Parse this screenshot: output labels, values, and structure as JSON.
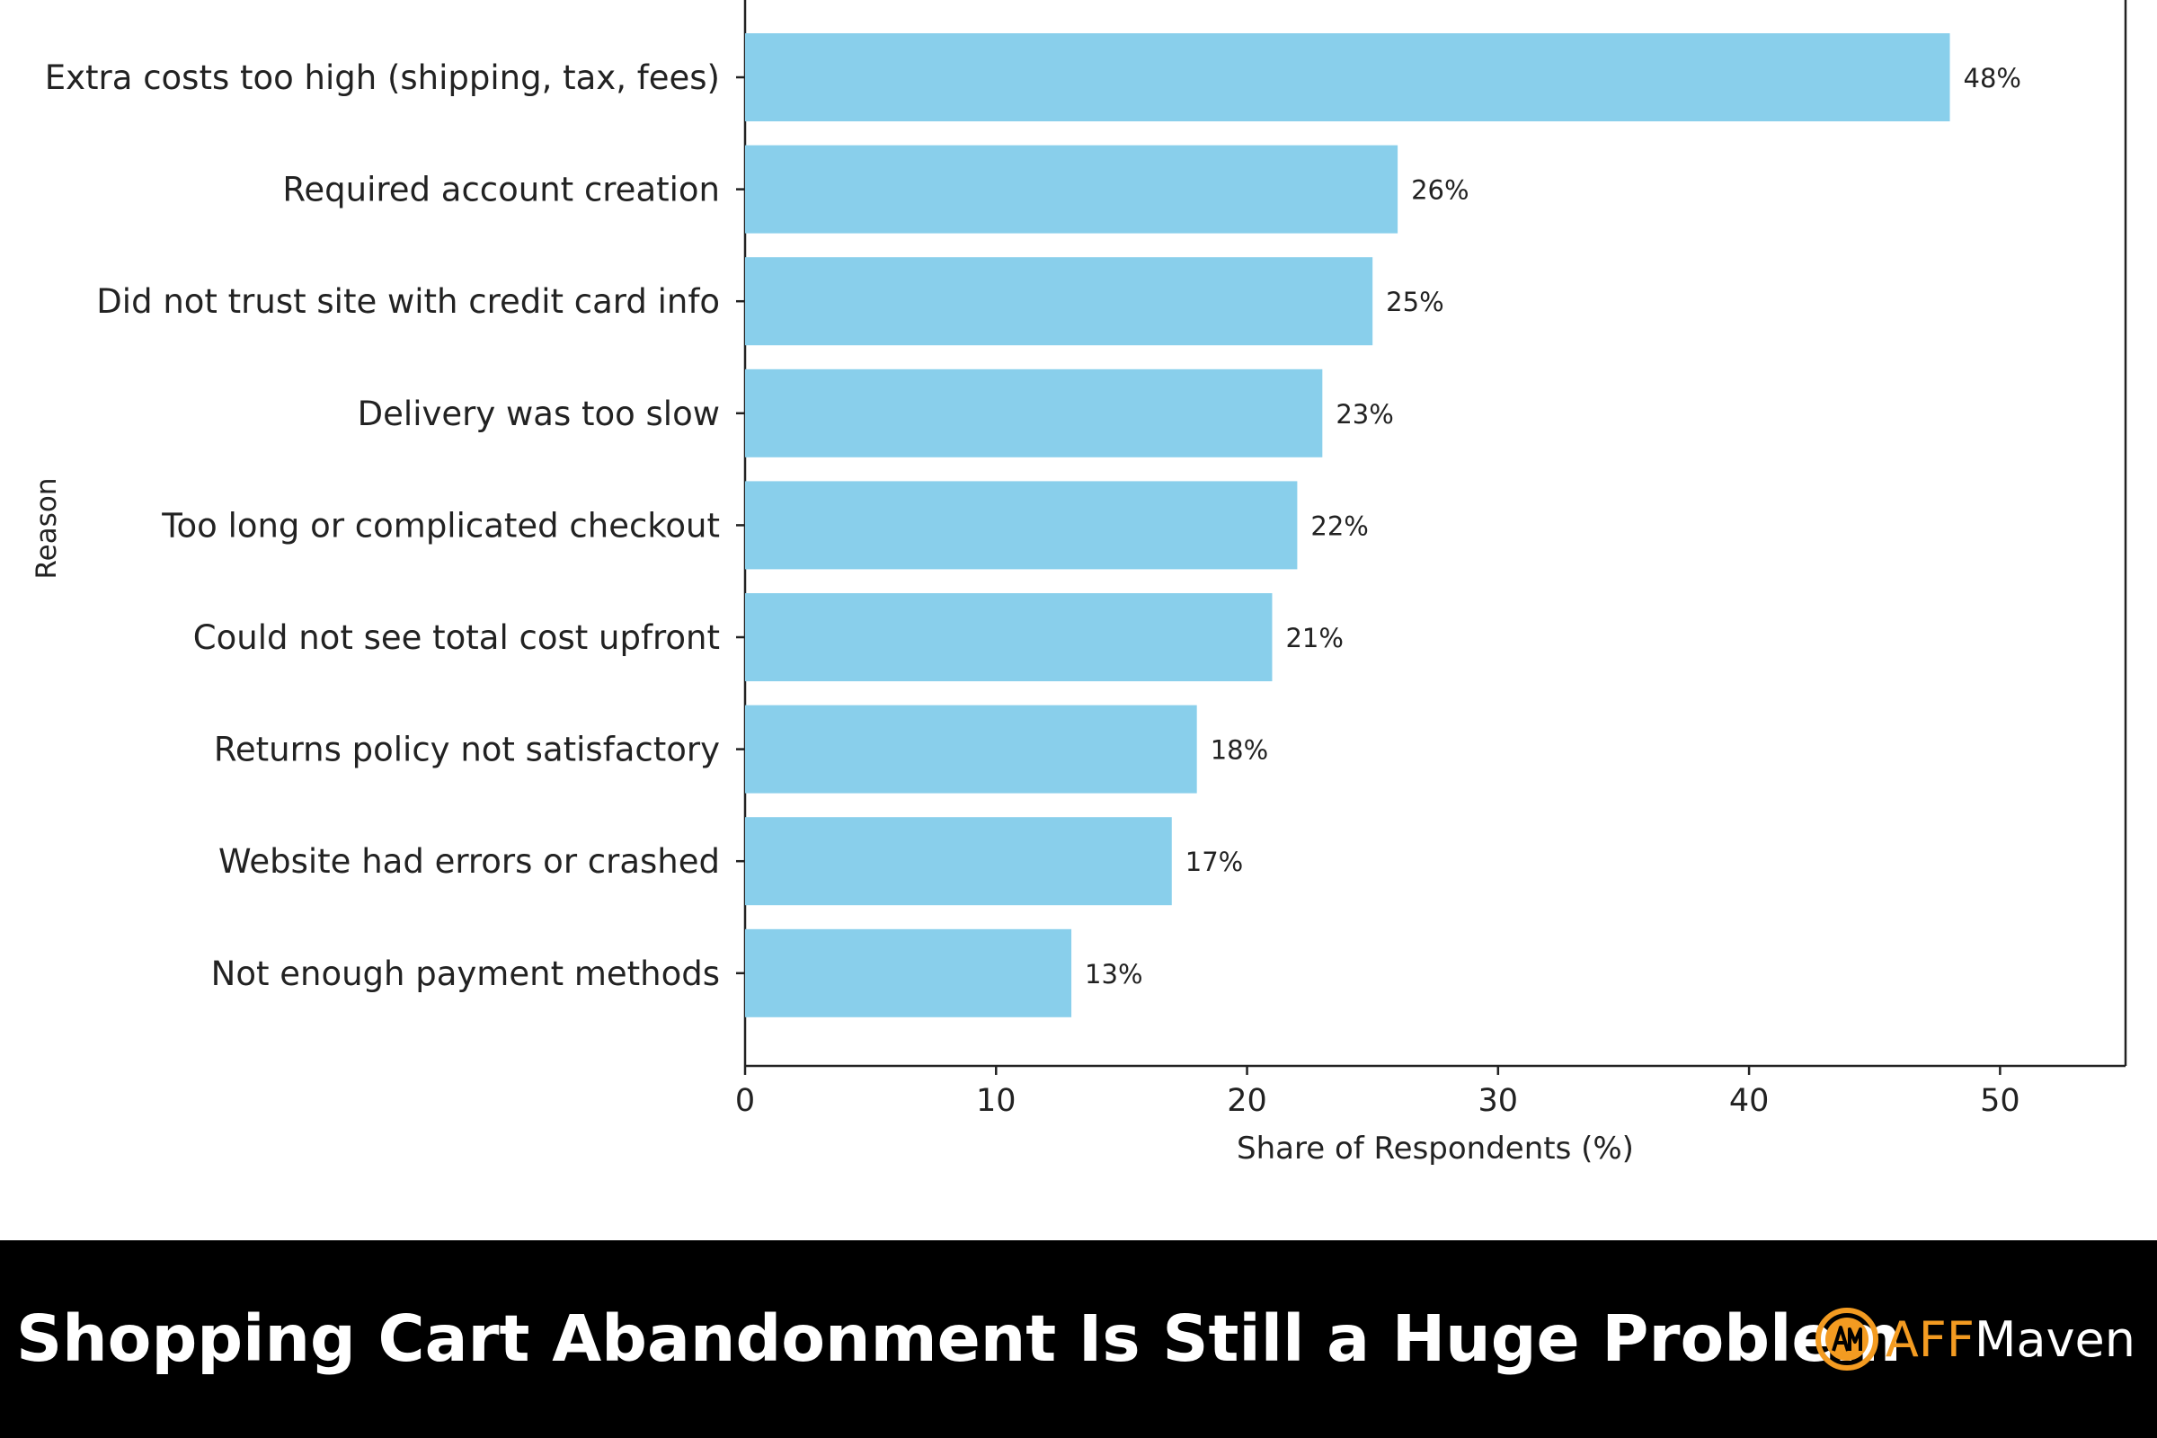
{
  "chart_data": {
    "type": "bar",
    "orientation": "horizontal",
    "categories": [
      "Extra costs too high (shipping, tax, fees)",
      "Required account creation",
      "Did not trust site with credit card info",
      "Delivery was too slow",
      "Too long or complicated checkout",
      "Could not see total cost upfront",
      "Returns policy not satisfactory",
      "Website had errors or crashed",
      "Not enough payment methods"
    ],
    "values": [
      48,
      26,
      25,
      23,
      22,
      21,
      18,
      17,
      13
    ],
    "data_labels": [
      "48%",
      "26%",
      "25%",
      "23%",
      "22%",
      "21%",
      "18%",
      "17%",
      "13%"
    ],
    "xlabel": "Share of Respondents (%)",
    "ylabel": "Reason",
    "xlim": [
      0,
      55
    ],
    "xticks": [
      0,
      10,
      20,
      30,
      40,
      50
    ],
    "grid": false,
    "bar_color": "#89cfeb"
  },
  "banner": {
    "title": "Shopping Cart Abandonment Is Still a Huge Problem",
    "brand_aff": "AFF",
    "brand_maven": "Maven",
    "brand_accent_color": "#f39b21",
    "background_color": "#000000"
  }
}
